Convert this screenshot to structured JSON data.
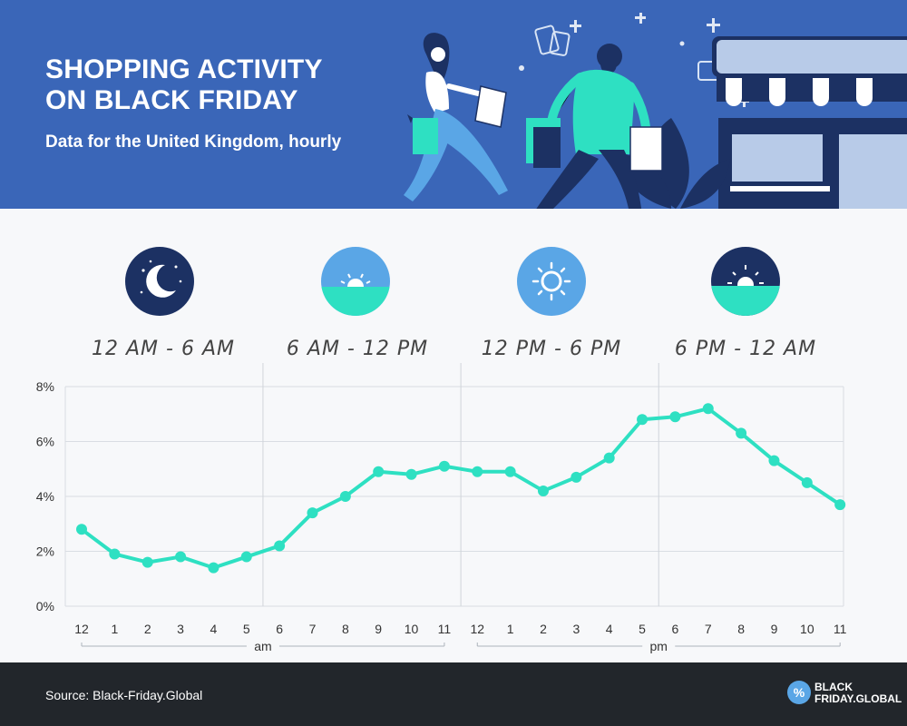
{
  "header": {
    "title_line1": "SHOPPING ACTIVITY",
    "title_line2": "ON BLACK FRIDAY",
    "subtitle": "Data for the United Kingdom, hourly"
  },
  "periods": [
    {
      "label": "12 AM - 6 AM",
      "icon": "moon-icon"
    },
    {
      "label": "6 AM - 12 PM",
      "icon": "sunrise-icon"
    },
    {
      "label": "12 PM - 6 PM",
      "icon": "sun-icon"
    },
    {
      "label": "6 PM - 12 AM",
      "icon": "sunset-icon"
    }
  ],
  "chart_data": {
    "type": "line",
    "title": "SHOPPING ACTIVITY ON BLACK FRIDAY",
    "subtitle": "Data for the United Kingdom, hourly",
    "x": [
      "12",
      "1",
      "2",
      "3",
      "4",
      "5",
      "6",
      "7",
      "8",
      "9",
      "10",
      "11",
      "12",
      "1",
      "2",
      "3",
      "4",
      "5",
      "6",
      "7",
      "8",
      "9",
      "10",
      "11"
    ],
    "x_groups": [
      {
        "label": "am",
        "range": [
          0,
          11
        ]
      },
      {
        "label": "pm",
        "range": [
          12,
          23
        ]
      }
    ],
    "series": [
      {
        "values": [
          2.8,
          1.9,
          1.6,
          1.8,
          1.4,
          1.8,
          2.2,
          3.4,
          4.0,
          4.9,
          4.8,
          5.1,
          4.9,
          4.9,
          4.2,
          4.7,
          5.4,
          6.8,
          6.9,
          7.2,
          6.3,
          5.3,
          4.5,
          3.7
        ],
        "color": "#2ee0c2"
      }
    ],
    "ylim": [
      0,
      8
    ],
    "yticks": [
      "0%",
      "2%",
      "4%",
      "6%",
      "8%"
    ],
    "ytick_values": [
      0,
      2,
      4,
      6,
      8
    ],
    "grid": true,
    "period_dividers_after_index": [
      5,
      11,
      17
    ]
  },
  "footer": {
    "source": "Source: Black-Friday.Global",
    "logo_line1": "BLACK",
    "logo_line2": "FRIDAY.GLOBAL",
    "logo_symbol": "%"
  },
  "colors": {
    "header_bg": "#3a66b8",
    "accent": "#2ee0c2",
    "footer_bg": "#22262b",
    "icon_dark": "#1c3163",
    "icon_light": "#5aa6e6"
  }
}
